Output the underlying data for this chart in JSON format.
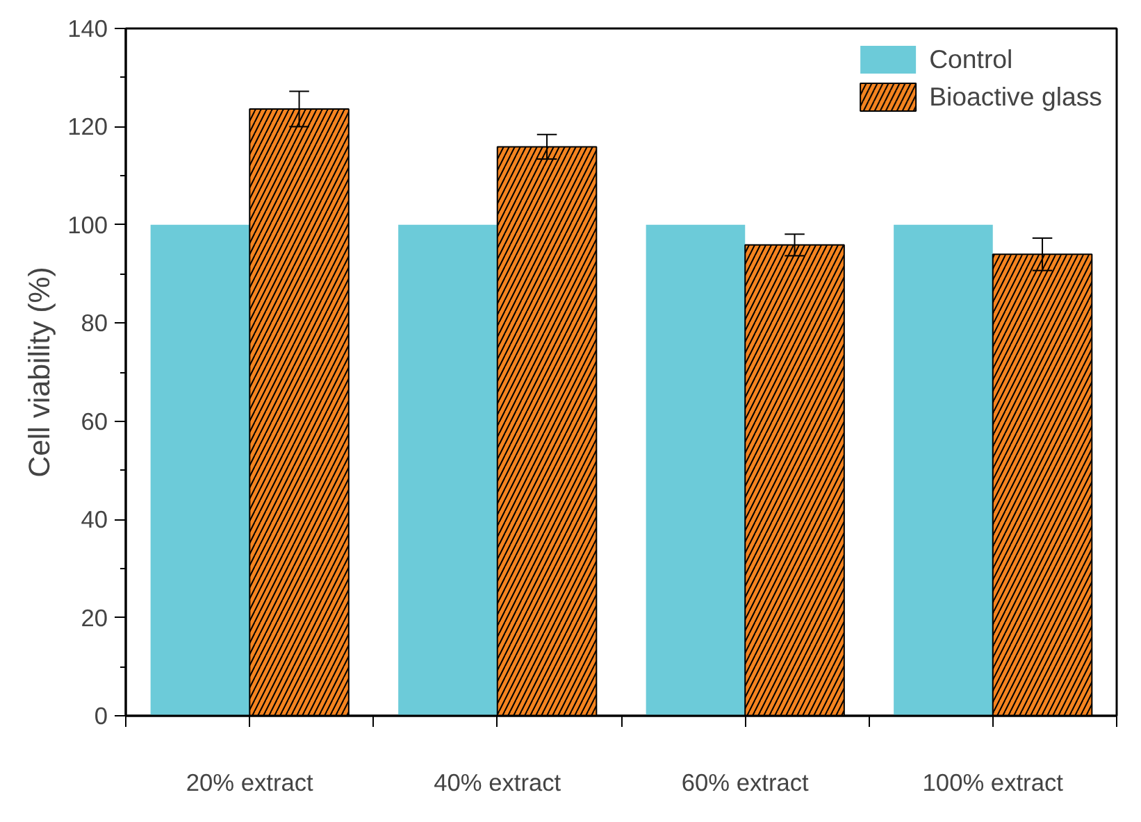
{
  "chart_data": {
    "type": "bar",
    "ylabel": "Cell viability (%)",
    "categories": [
      "20% extract",
      "40% extract",
      "60% extract",
      "100% extract"
    ],
    "series": [
      {
        "name": "Control",
        "color": "#6ccbd9",
        "values": [
          100,
          100,
          100,
          100
        ]
      },
      {
        "name": "Bioactive glass",
        "color": "#f5841f",
        "values": [
          123.6,
          115.9,
          95.9,
          94.0
        ],
        "errors": [
          3.6,
          2.5,
          2.2,
          3.3
        ]
      }
    ],
    "ylim": [
      0,
      140
    ],
    "yticks": [
      0,
      20,
      40,
      60,
      80,
      100,
      120,
      140
    ],
    "grid": false,
    "legend": "top right"
  }
}
